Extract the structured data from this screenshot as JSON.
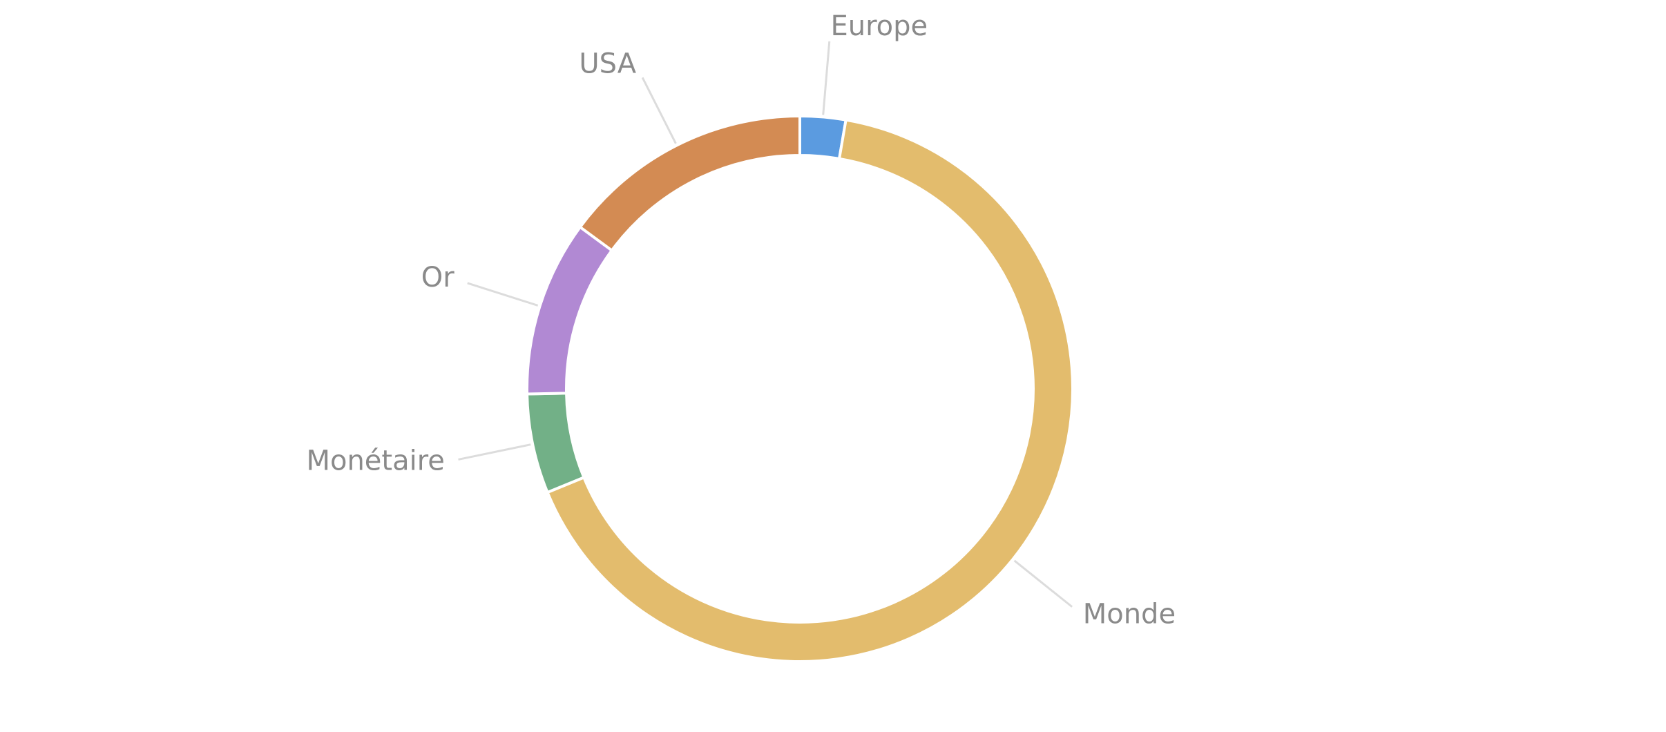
{
  "chart_data": {
    "type": "donut",
    "categories": [
      "Europe",
      "Monde",
      "Monétaire",
      "Or",
      "USA"
    ],
    "values": [
      2.7,
      66.1,
      5.9,
      10.4,
      14.9
    ],
    "colors": [
      "#5b9be0",
      "#e3bc6d",
      "#72b087",
      "#b189d3",
      "#d38b53"
    ]
  }
}
